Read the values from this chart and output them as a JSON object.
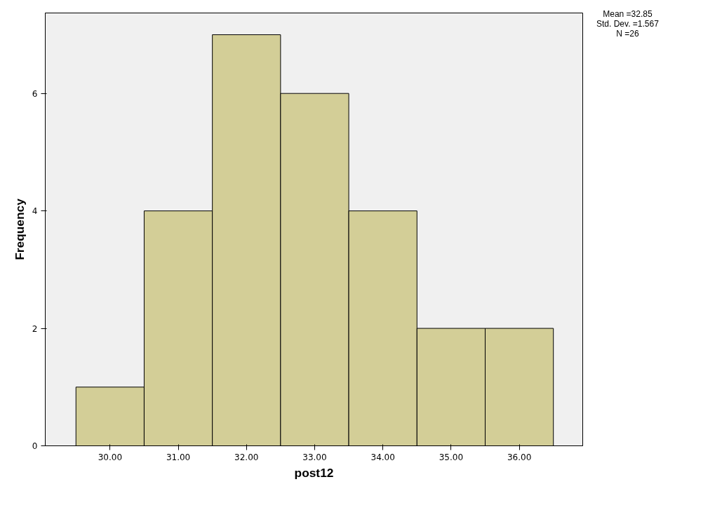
{
  "chart_data": {
    "type": "histogram",
    "xlabel": "post12",
    "ylabel": "Frequency",
    "bins": [
      29.5,
      30.5,
      31.5,
      32.5,
      33.5,
      34.5,
      35.5,
      36.5
    ],
    "values": [
      1,
      4,
      7,
      6,
      4,
      2,
      2
    ],
    "color": "#d3ce97",
    "xlim": [
      29.05,
      36.93
    ],
    "xticks": [
      {
        "value": 30,
        "label": "30.00"
      },
      {
        "value": 31,
        "label": "31.00"
      },
      {
        "value": 32,
        "label": "32.00"
      },
      {
        "value": 33,
        "label": "33.00"
      },
      {
        "value": 34,
        "label": "34.00"
      },
      {
        "value": 35,
        "label": "35.00"
      },
      {
        "value": 36,
        "label": "36.00"
      }
    ],
    "ylim": [
      0,
      7.37
    ],
    "yticks": [
      0,
      2,
      4,
      6
    ],
    "grid": false,
    "annotations": [
      "Mean =32.85",
      "Std. Dev. =1.567",
      "N =26"
    ]
  }
}
